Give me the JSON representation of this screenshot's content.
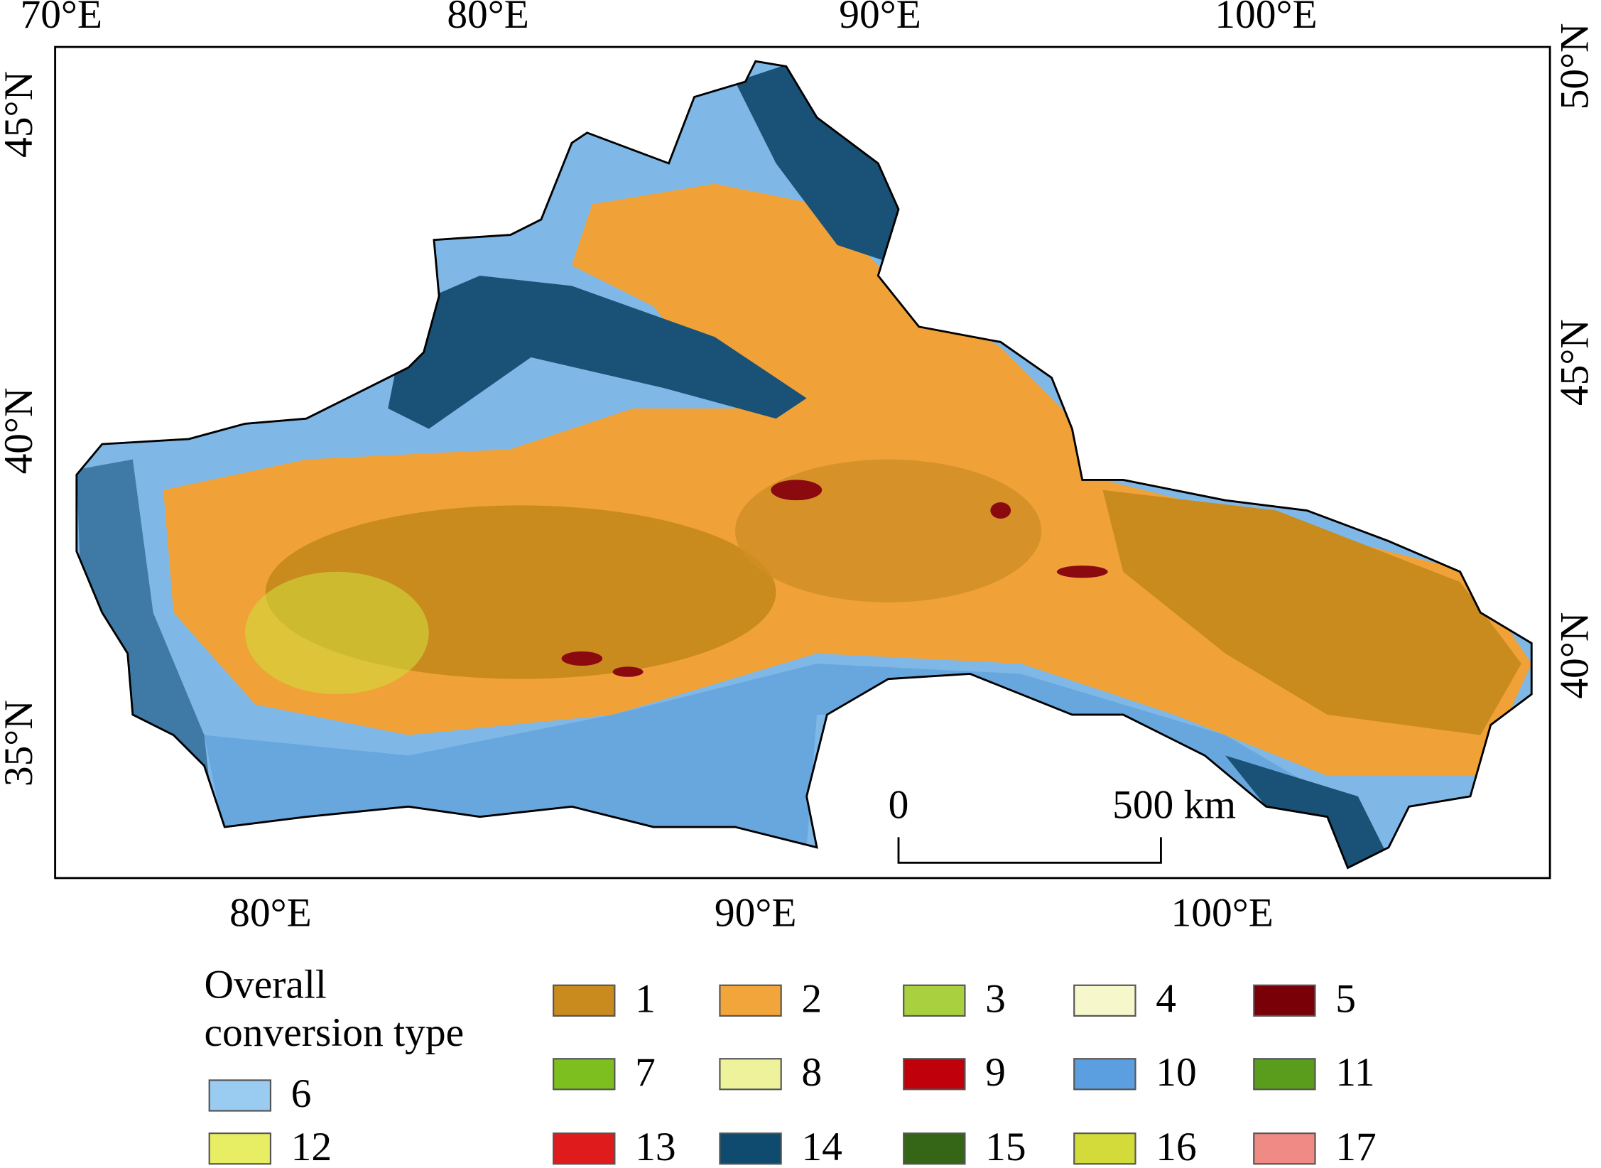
{
  "map": {
    "top_ticks": [
      "70°E",
      "80°E",
      "90°E",
      "100°E"
    ],
    "bottom_ticks": [
      "80°E",
      "90°E",
      "100°E"
    ],
    "left_ticks": [
      "45°N",
      "40°N",
      "35°N"
    ],
    "right_ticks": [
      "50°N",
      "45°N",
      "40°N"
    ],
    "scale_bar": {
      "start": "0",
      "end": "500 km"
    }
  },
  "legend": {
    "title_lines": [
      "Overall",
      "conversion type"
    ],
    "items": [
      {
        "label": "6",
        "color": "#99ccf0"
      },
      {
        "label": "12",
        "color": "#e8ee63"
      },
      {
        "label": "1",
        "color": "#c98a1e"
      },
      {
        "label": "2",
        "color": "#f2a53a"
      },
      {
        "label": "3",
        "color": "#a9d13f"
      },
      {
        "label": "4",
        "color": "#f7f7cc"
      },
      {
        "label": "5",
        "color": "#7a0008"
      },
      {
        "label": "7",
        "color": "#7cbf1f"
      },
      {
        "label": "8",
        "color": "#eef29a"
      },
      {
        "label": "9",
        "color": "#c0000b"
      },
      {
        "label": "10",
        "color": "#5b9fe0"
      },
      {
        "label": "11",
        "color": "#5a9c1c"
      },
      {
        "label": "13",
        "color": "#e01b1b"
      },
      {
        "label": "14",
        "color": "#0f4b6e"
      },
      {
        "label": "15",
        "color": "#356617"
      },
      {
        "label": "16",
        "color": "#d2db3a"
      },
      {
        "label": "17",
        "color": "#f08a84"
      }
    ]
  }
}
